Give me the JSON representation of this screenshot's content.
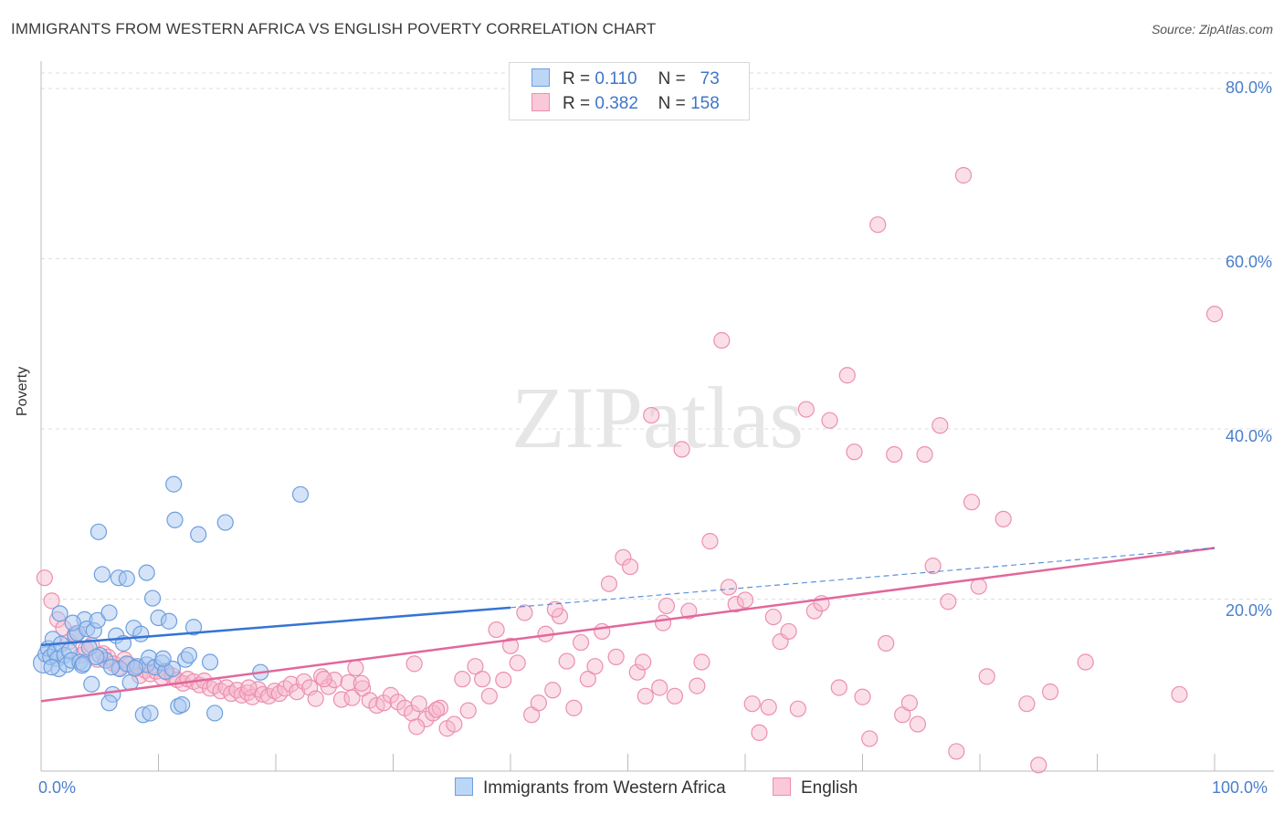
{
  "title": "IMMIGRANTS FROM WESTERN AFRICA VS ENGLISH POVERTY CORRELATION CHART",
  "source": "Source: ZipAtlas.com",
  "watermark": "ZIPatlas",
  "legend": {
    "rows": [
      {
        "r_label": "R =",
        "r_value": "0.110",
        "n_label": "N =",
        "n_value": "73"
      },
      {
        "r_label": "R =",
        "r_value": "0.382",
        "n_label": "N =",
        "n_value": "158"
      }
    ]
  },
  "y_ticks": [
    "80.0%",
    "60.0%",
    "40.0%",
    "20.0%"
  ],
  "x_ticks": [
    "0.0%",
    "100.0%"
  ],
  "ylabel": "Poverty",
  "series_labels": [
    "Immigrants from Western Africa",
    "English"
  ],
  "colors": {
    "blue_fill": "#a9c8f0",
    "blue_stroke": "#6d9fe0",
    "blue_line": "#3574d4",
    "pink_fill": "#f7b8cc",
    "pink_stroke": "#ec8fae",
    "pink_line": "#e2679a",
    "tick_text": "#4a7fcb",
    "grid": "#dedede"
  },
  "chart_data": {
    "type": "scatter",
    "title": "IMMIGRANTS FROM WESTERN AFRICA VS ENGLISH POVERTY CORRELATION CHART",
    "xlabel": "",
    "ylabel": "Poverty",
    "xlim": [
      0,
      100
    ],
    "ylim": [
      0,
      80
    ],
    "grid": true,
    "legend_placement": "top-center",
    "series": [
      {
        "name": "Immigrants from Western Africa",
        "r": 0.11,
        "n": 73,
        "trend": {
          "x": [
            0,
            40
          ],
          "y": [
            14.6,
            19.0
          ],
          "dashed_extension_to": [
            100,
            26.0
          ]
        },
        "points": [
          [
            0.2,
            12.5
          ],
          [
            0.4,
            13.5
          ],
          [
            0.6,
            14.2
          ],
          [
            0.8,
            13.2
          ],
          [
            1.0,
            15.3
          ],
          [
            1.2,
            13.8
          ],
          [
            1.4,
            13.0
          ],
          [
            1.5,
            11.8
          ],
          [
            1.7,
            14.7
          ],
          [
            2.0,
            13.4
          ],
          [
            2.2,
            12.3
          ],
          [
            2.4,
            13.9
          ],
          [
            2.6,
            12.8
          ],
          [
            2.9,
            15.7
          ],
          [
            3.1,
            16.0
          ],
          [
            3.3,
            12.6
          ],
          [
            3.5,
            12.2
          ],
          [
            3.7,
            17.6
          ],
          [
            3.9,
            16.5
          ],
          [
            4.1,
            14.3
          ],
          [
            4.3,
            10.0
          ],
          [
            4.5,
            16.3
          ],
          [
            4.8,
            17.5
          ],
          [
            5.2,
            22.9
          ],
          [
            5.5,
            12.8
          ],
          [
            5.0,
            13.4
          ],
          [
            5.8,
            18.4
          ],
          [
            6.1,
            8.8
          ],
          [
            6.4,
            15.7
          ],
          [
            6.7,
            11.8
          ],
          [
            7.0,
            14.8
          ],
          [
            7.3,
            12.4
          ],
          [
            7.6,
            10.2
          ],
          [
            7.9,
            16.6
          ],
          [
            8.2,
            12.1
          ],
          [
            8.5,
            15.9
          ],
          [
            8.7,
            6.4
          ],
          [
            9.0,
            12.3
          ],
          [
            9.2,
            13.1
          ],
          [
            9.5,
            20.1
          ],
          [
            9.7,
            12.0
          ],
          [
            10.0,
            17.8
          ],
          [
            10.3,
            12.5
          ],
          [
            10.6,
            11.5
          ],
          [
            10.9,
            17.4
          ],
          [
            11.2,
            11.8
          ],
          [
            11.7,
            7.4
          ],
          [
            12.0,
            7.6
          ],
          [
            12.3,
            12.9
          ],
          [
            12.6,
            13.4
          ],
          [
            13.0,
            16.7
          ],
          [
            13.4,
            27.6
          ],
          [
            14.4,
            12.6
          ],
          [
            15.7,
            29.0
          ],
          [
            18.7,
            11.4
          ],
          [
            22.1,
            32.3
          ],
          [
            1.6,
            18.3
          ],
          [
            4.9,
            27.9
          ],
          [
            6.6,
            22.5
          ],
          [
            7.3,
            22.4
          ],
          [
            9.0,
            23.1
          ],
          [
            11.3,
            33.5
          ],
          [
            11.4,
            29.3
          ],
          [
            14.8,
            6.6
          ],
          [
            9.3,
            6.6
          ],
          [
            5.8,
            7.8
          ],
          [
            2.7,
            17.2
          ],
          [
            3.6,
            12.4
          ],
          [
            4.7,
            13.2
          ],
          [
            8.0,
            11.9
          ],
          [
            10.4,
            13.0
          ],
          [
            0.9,
            12.0
          ],
          [
            6.0,
            12.0
          ]
        ]
      },
      {
        "name": "English",
        "r": 0.382,
        "n": 158,
        "trend": {
          "x": [
            0,
            100
          ],
          "y": [
            8.0,
            26.0
          ]
        },
        "points": [
          [
            0.3,
            22.5
          ],
          [
            0.9,
            19.8
          ],
          [
            1.4,
            17.6
          ],
          [
            1.9,
            16.6
          ],
          [
            2.4,
            15.0
          ],
          [
            2.9,
            15.9
          ],
          [
            3.4,
            13.4
          ],
          [
            3.8,
            14.1
          ],
          [
            4.3,
            14.6
          ],
          [
            4.8,
            12.9
          ],
          [
            5.3,
            13.6
          ],
          [
            5.7,
            13.2
          ],
          [
            6.2,
            12.4
          ],
          [
            6.6,
            11.9
          ],
          [
            7.1,
            12.9
          ],
          [
            7.5,
            12.3
          ],
          [
            8.0,
            11.8
          ],
          [
            8.4,
            11.0
          ],
          [
            8.9,
            11.6
          ],
          [
            9.3,
            11.2
          ],
          [
            9.8,
            11.5
          ],
          [
            10.3,
            10.8
          ],
          [
            10.7,
            11.4
          ],
          [
            11.2,
            11.0
          ],
          [
            11.6,
            10.5
          ],
          [
            12.1,
            10.1
          ],
          [
            12.5,
            10.6
          ],
          [
            13.0,
            10.3
          ],
          [
            13.5,
            9.9
          ],
          [
            13.9,
            10.4
          ],
          [
            14.4,
            9.5
          ],
          [
            14.8,
            9.8
          ],
          [
            15.3,
            9.2
          ],
          [
            15.8,
            9.6
          ],
          [
            16.2,
            8.9
          ],
          [
            16.7,
            9.3
          ],
          [
            17.1,
            8.7
          ],
          [
            17.6,
            9.0
          ],
          [
            18.0,
            8.5
          ],
          [
            18.5,
            9.4
          ],
          [
            18.9,
            8.8
          ],
          [
            19.4,
            8.6
          ],
          [
            19.9,
            9.2
          ],
          [
            20.3,
            8.9
          ],
          [
            20.8,
            9.5
          ],
          [
            21.3,
            10.0
          ],
          [
            21.8,
            9.1
          ],
          [
            22.4,
            10.3
          ],
          [
            22.9,
            9.6
          ],
          [
            23.4,
            8.3
          ],
          [
            23.9,
            10.9
          ],
          [
            24.5,
            9.7
          ],
          [
            25.0,
            10.5
          ],
          [
            25.6,
            8.2
          ],
          [
            26.2,
            10.2
          ],
          [
            26.8,
            11.9
          ],
          [
            27.4,
            9.5
          ],
          [
            28.0,
            8.1
          ],
          [
            28.6,
            7.5
          ],
          [
            29.2,
            7.8
          ],
          [
            29.8,
            8.7
          ],
          [
            30.4,
            7.9
          ],
          [
            31.0,
            7.2
          ],
          [
            31.6,
            6.6
          ],
          [
            32.2,
            7.7
          ],
          [
            32.8,
            5.9
          ],
          [
            33.4,
            6.6
          ],
          [
            34.0,
            7.2
          ],
          [
            34.6,
            4.8
          ],
          [
            35.2,
            5.3
          ],
          [
            35.9,
            10.6
          ],
          [
            36.4,
            6.9
          ],
          [
            37.0,
            12.1
          ],
          [
            37.6,
            10.6
          ],
          [
            38.2,
            8.6
          ],
          [
            38.8,
            16.4
          ],
          [
            39.4,
            10.5
          ],
          [
            40.0,
            14.5
          ],
          [
            40.6,
            12.5
          ],
          [
            41.2,
            18.4
          ],
          [
            41.8,
            6.4
          ],
          [
            42.4,
            7.8
          ],
          [
            43.0,
            15.9
          ],
          [
            43.6,
            9.3
          ],
          [
            44.2,
            18.0
          ],
          [
            44.8,
            12.7
          ],
          [
            45.4,
            7.2
          ],
          [
            46.0,
            14.9
          ],
          [
            46.6,
            10.6
          ],
          [
            47.2,
            12.1
          ],
          [
            47.8,
            16.2
          ],
          [
            48.4,
            21.8
          ],
          [
            49.0,
            13.2
          ],
          [
            49.6,
            24.9
          ],
          [
            50.2,
            23.8
          ],
          [
            50.8,
            11.4
          ],
          [
            51.5,
            8.6
          ],
          [
            52.0,
            41.6
          ],
          [
            52.7,
            9.6
          ],
          [
            53.3,
            19.2
          ],
          [
            54.0,
            8.6
          ],
          [
            54.6,
            37.6
          ],
          [
            55.2,
            18.6
          ],
          [
            55.9,
            9.8
          ],
          [
            56.3,
            12.6
          ],
          [
            57.0,
            26.8
          ],
          [
            58.0,
            50.4
          ],
          [
            58.6,
            21.4
          ],
          [
            59.2,
            19.4
          ],
          [
            60.0,
            19.9
          ],
          [
            60.6,
            7.7
          ],
          [
            61.2,
            4.3
          ],
          [
            62.0,
            7.3
          ],
          [
            62.4,
            17.9
          ],
          [
            63.0,
            15.0
          ],
          [
            63.7,
            16.2
          ],
          [
            64.5,
            7.1
          ],
          [
            65.2,
            42.3
          ],
          [
            65.9,
            18.6
          ],
          [
            66.5,
            19.5
          ],
          [
            67.2,
            41.0
          ],
          [
            68.0,
            9.6
          ],
          [
            68.7,
            46.3
          ],
          [
            69.3,
            37.3
          ],
          [
            70.0,
            8.5
          ],
          [
            70.6,
            3.6
          ],
          [
            71.3,
            64.0
          ],
          [
            72.0,
            14.8
          ],
          [
            72.7,
            37.0
          ],
          [
            73.4,
            6.4
          ],
          [
            74.0,
            7.8
          ],
          [
            74.7,
            5.3
          ],
          [
            75.3,
            37.0
          ],
          [
            76.0,
            23.9
          ],
          [
            76.6,
            40.4
          ],
          [
            77.3,
            19.7
          ],
          [
            78.0,
            2.1
          ],
          [
            78.6,
            69.8
          ],
          [
            79.3,
            31.4
          ],
          [
            79.9,
            21.5
          ],
          [
            80.6,
            10.9
          ],
          [
            82.0,
            29.4
          ],
          [
            84.0,
            7.7
          ],
          [
            85.0,
            0.5
          ],
          [
            86.0,
            9.1
          ],
          [
            97.0,
            8.8
          ],
          [
            100.0,
            53.5
          ],
          [
            31.8,
            12.4
          ],
          [
            27.3,
            10.1
          ],
          [
            24.1,
            10.6
          ],
          [
            17.7,
            9.6
          ],
          [
            26.5,
            8.4
          ],
          [
            32.0,
            5.0
          ],
          [
            33.7,
            7.0
          ],
          [
            43.8,
            18.8
          ],
          [
            51.3,
            12.6
          ],
          [
            89.0,
            12.6
          ],
          [
            53.0,
            17.2
          ]
        ]
      }
    ]
  }
}
